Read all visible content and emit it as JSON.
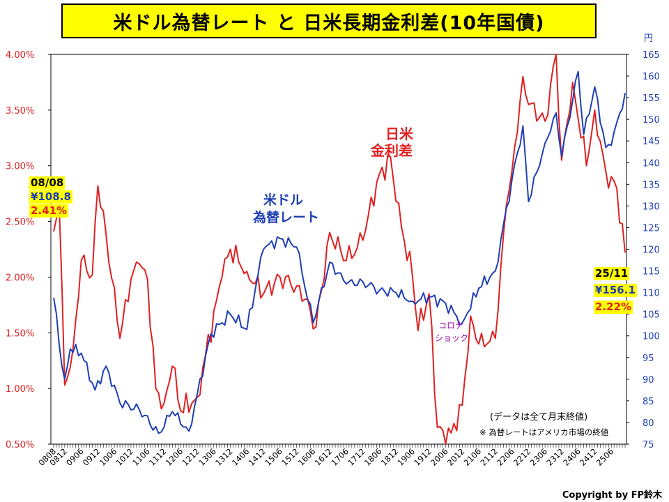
{
  "title": "米ドル為替レート と 日米長期金利差(10年国債)",
  "colors": {
    "fx": "#1f3fb4",
    "spread": "#e02020",
    "highlight": "#ffff00",
    "corona": "#9900aa"
  },
  "chart_data": {
    "type": "line",
    "title": "米ドル為替レート と 日米長期金利差(10年国債)",
    "xlabel": "",
    "y_left_label": "",
    "y_right_label": "円",
    "y_left_range": [
      0.5,
      4.0
    ],
    "y_left_ticks": [
      "0.50%",
      "1.00%",
      "1.50%",
      "2.00%",
      "2.50%",
      "3.00%",
      "3.50%",
      "4.00%"
    ],
    "y_right_range": [
      75,
      165
    ],
    "y_right_ticks": [
      "75",
      "80",
      "85",
      "90",
      "95",
      "100",
      "105",
      "110",
      "115",
      "120",
      "125",
      "130",
      "135",
      "140",
      "145",
      "150",
      "155",
      "160",
      "165"
    ],
    "x_ticks": [
      "0808",
      "0812",
      "0906",
      "0912",
      "1006",
      "1012",
      "1106",
      "1112",
      "1206",
      "1212",
      "1306",
      "1312",
      "1406",
      "1412",
      "1506",
      "1512",
      "1606",
      "1612",
      "1706",
      "1712",
      "1806",
      "1812",
      "1906",
      "1912",
      "2006",
      "2012",
      "2106",
      "2112",
      "2206",
      "2212",
      "2306",
      "2312",
      "2406",
      "2412",
      "2506"
    ],
    "period": "2008/08 - 2025/11 (monthly, month-end)",
    "series": [
      {
        "name": "米ドル為替レート",
        "axis": "right",
        "unit": "円",
        "start": "2008/08",
        "keypoints": [
          [
            "2008/08",
            108.8
          ],
          [
            "2008/09",
            105.0
          ],
          [
            "2008/10",
            98.0
          ],
          [
            "2008/12",
            90.0
          ],
          [
            "2009/02",
            97.0
          ],
          [
            "2009/06",
            96.0
          ],
          [
            "2009/11",
            87.5
          ],
          [
            "2010/03",
            93.0
          ],
          [
            "2010/08",
            84.5
          ],
          [
            "2011/03",
            83.0
          ],
          [
            "2011/10",
            77.5
          ],
          [
            "2012/03",
            82.5
          ],
          [
            "2012/09",
            78.0
          ],
          [
            "2012/12",
            86.5
          ],
          [
            "2013/05",
            100.5
          ],
          [
            "2013/12",
            105.0
          ],
          [
            "2014/06",
            101.5
          ],
          [
            "2014/12",
            120.0
          ],
          [
            "2015/06",
            122.5
          ],
          [
            "2015/12",
            120.5
          ],
          [
            "2016/06",
            103.0
          ],
          [
            "2016/12",
            117.0
          ],
          [
            "2017/06",
            112.0
          ],
          [
            "2017/12",
            112.5
          ],
          [
            "2018/06",
            110.5
          ],
          [
            "2018/12",
            110.0
          ],
          [
            "2019/06",
            108.0
          ],
          [
            "2019/12",
            109.0
          ],
          [
            "2020/06",
            107.5
          ],
          [
            "2020/12",
            103.0
          ],
          [
            "2021/06",
            111.0
          ],
          [
            "2021/12",
            115.0
          ],
          [
            "2022/06",
            136.0
          ],
          [
            "2022/10",
            148.5
          ],
          [
            "2022/12",
            131.0
          ],
          [
            "2023/06",
            144.5
          ],
          [
            "2023/10",
            151.5
          ],
          [
            "2023/12",
            141.5
          ],
          [
            "2024/06",
            161.0
          ],
          [
            "2024/08",
            146.5
          ],
          [
            "2024/12",
            157.5
          ],
          [
            "2025/04",
            143.5
          ],
          [
            "2025/06",
            144.0
          ],
          [
            "2025/11",
            156.1
          ]
        ]
      },
      {
        "name": "日米長期金利差",
        "axis": "left",
        "unit": "%",
        "start": "2008/08",
        "keypoints": [
          [
            "2008/08",
            2.41
          ],
          [
            "2008/10",
            2.65
          ],
          [
            "2008/12",
            1.03
          ],
          [
            "2009/03",
            1.35
          ],
          [
            "2009/06",
            2.15
          ],
          [
            "2009/10",
            2.02
          ],
          [
            "2009/12",
            2.82
          ],
          [
            "2010/03",
            2.38
          ],
          [
            "2010/08",
            1.45
          ],
          [
            "2010/12",
            1.98
          ],
          [
            "2011/03",
            2.12
          ],
          [
            "2011/06",
            1.98
          ],
          [
            "2011/09",
            1.0
          ],
          [
            "2011/12",
            0.87
          ],
          [
            "2012/03",
            1.2
          ],
          [
            "2012/06",
            0.8
          ],
          [
            "2012/12",
            0.92
          ],
          [
            "2013/03",
            1.3
          ],
          [
            "2013/09",
            2.0
          ],
          [
            "2013/12",
            2.25
          ],
          [
            "2014/06",
            2.05
          ],
          [
            "2014/12",
            1.85
          ],
          [
            "2015/06",
            2.0
          ],
          [
            "2015/12",
            1.92
          ],
          [
            "2016/03",
            1.8
          ],
          [
            "2016/07",
            1.55
          ],
          [
            "2016/12",
            2.4
          ],
          [
            "2017/06",
            2.15
          ],
          [
            "2017/12",
            2.33
          ],
          [
            "2018/05",
            2.85
          ],
          [
            "2018/10",
            3.08
          ],
          [
            "2018/12",
            2.68
          ],
          [
            "2019/06",
            2.0
          ],
          [
            "2019/08",
            1.52
          ],
          [
            "2019/12",
            1.85
          ],
          [
            "2020/03",
            0.65
          ],
          [
            "2020/05",
            0.62
          ],
          [
            "2020/08",
            0.6
          ],
          [
            "2020/12",
            0.85
          ],
          [
            "2021/03",
            1.65
          ],
          [
            "2021/06",
            1.4
          ],
          [
            "2021/09",
            1.4
          ],
          [
            "2021/12",
            1.45
          ],
          [
            "2022/04",
            2.65
          ],
          [
            "2022/06",
            2.95
          ],
          [
            "2022/10",
            3.8
          ],
          [
            "2022/12",
            3.55
          ],
          [
            "2023/06",
            3.4
          ],
          [
            "2023/10",
            4.0
          ],
          [
            "2023/12",
            3.05
          ],
          [
            "2024/04",
            3.75
          ],
          [
            "2024/09",
            3.0
          ],
          [
            "2024/12",
            3.5
          ],
          [
            "2025/04",
            2.95
          ],
          [
            "2025/08",
            2.8
          ],
          [
            "2025/11",
            2.22
          ]
        ]
      }
    ]
  },
  "annotations": {
    "start_date": "08/08",
    "start_fx": "¥108.8",
    "start_spread": "2.41%",
    "end_date": "25/11",
    "end_fx": "¥156.1",
    "end_spread": "2.22%",
    "spread_label_1": "日米",
    "spread_label_2": "金利差",
    "fx_label_1": "米ドル",
    "fx_label_2": "為替レート",
    "corona_1": "コロナ",
    "corona_2": "ショック"
  },
  "notes": {
    "data_note": "(データは全て月末終値)",
    "fx_note": "※ 為替レートはアメリカ市場の終値"
  },
  "copyright": "Copyright by FP鈴木"
}
